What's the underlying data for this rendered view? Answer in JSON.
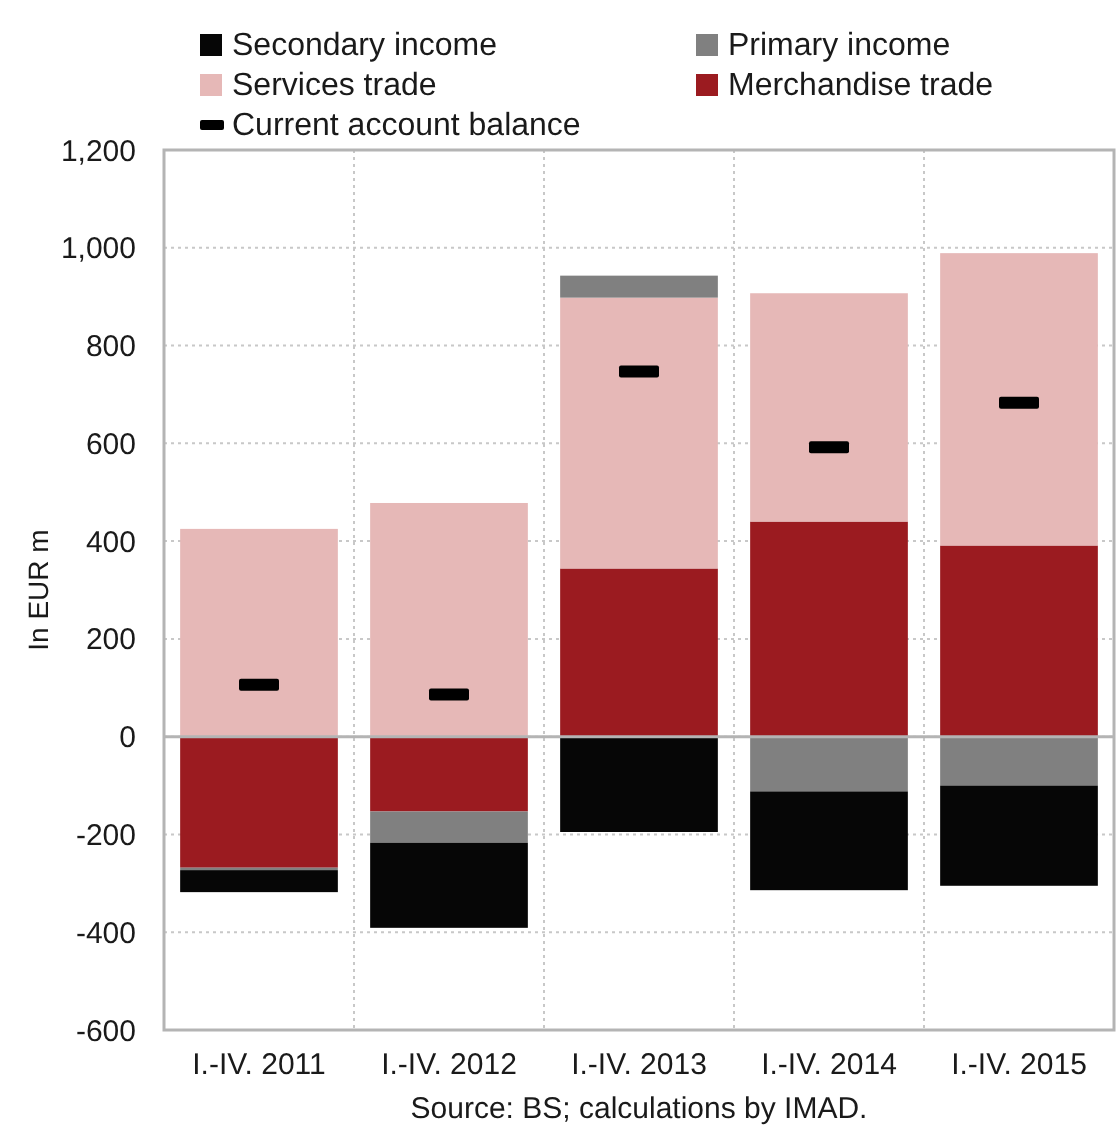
{
  "chart_data": {
    "type": "bar",
    "stacked": true,
    "categories": [
      "I.-IV. 2011",
      "I.-IV. 2012",
      "I.-IV. 2013",
      "I.-IV. 2014",
      "I.-IV. 2015"
    ],
    "series": [
      {
        "name": "Merchandise trade",
        "color": "#9b1b20",
        "values": [
          -268,
          -153,
          344,
          440,
          391
        ]
      },
      {
        "name": "Services trade",
        "color": "#e6b8b7",
        "values": [
          425,
          478,
          554,
          467,
          598
        ]
      },
      {
        "name": "Primary income",
        "color": "#808080",
        "values": [
          -5,
          -64,
          45,
          -112,
          -100
        ]
      },
      {
        "name": "Secondary income",
        "color": "#060606",
        "values": [
          -45,
          -174,
          -195,
          -202,
          -205
        ]
      },
      {
        "name": "Current account balance",
        "type": "scatter",
        "color": "#000000",
        "values": [
          106,
          86,
          747,
          592,
          683
        ]
      }
    ],
    "ylabel": "In EUR m",
    "ylim": [
      -600,
      1200
    ],
    "yticks": [
      -600,
      -400,
      -200,
      0,
      200,
      400,
      600,
      800,
      {
        "value": 1000,
        "label": "1,000"
      },
      {
        "value": 1200,
        "label": "1,200"
      }
    ],
    "grid": true,
    "legend": "top",
    "annotations": [
      "Source: BS; calculations by IMAD."
    ]
  }
}
